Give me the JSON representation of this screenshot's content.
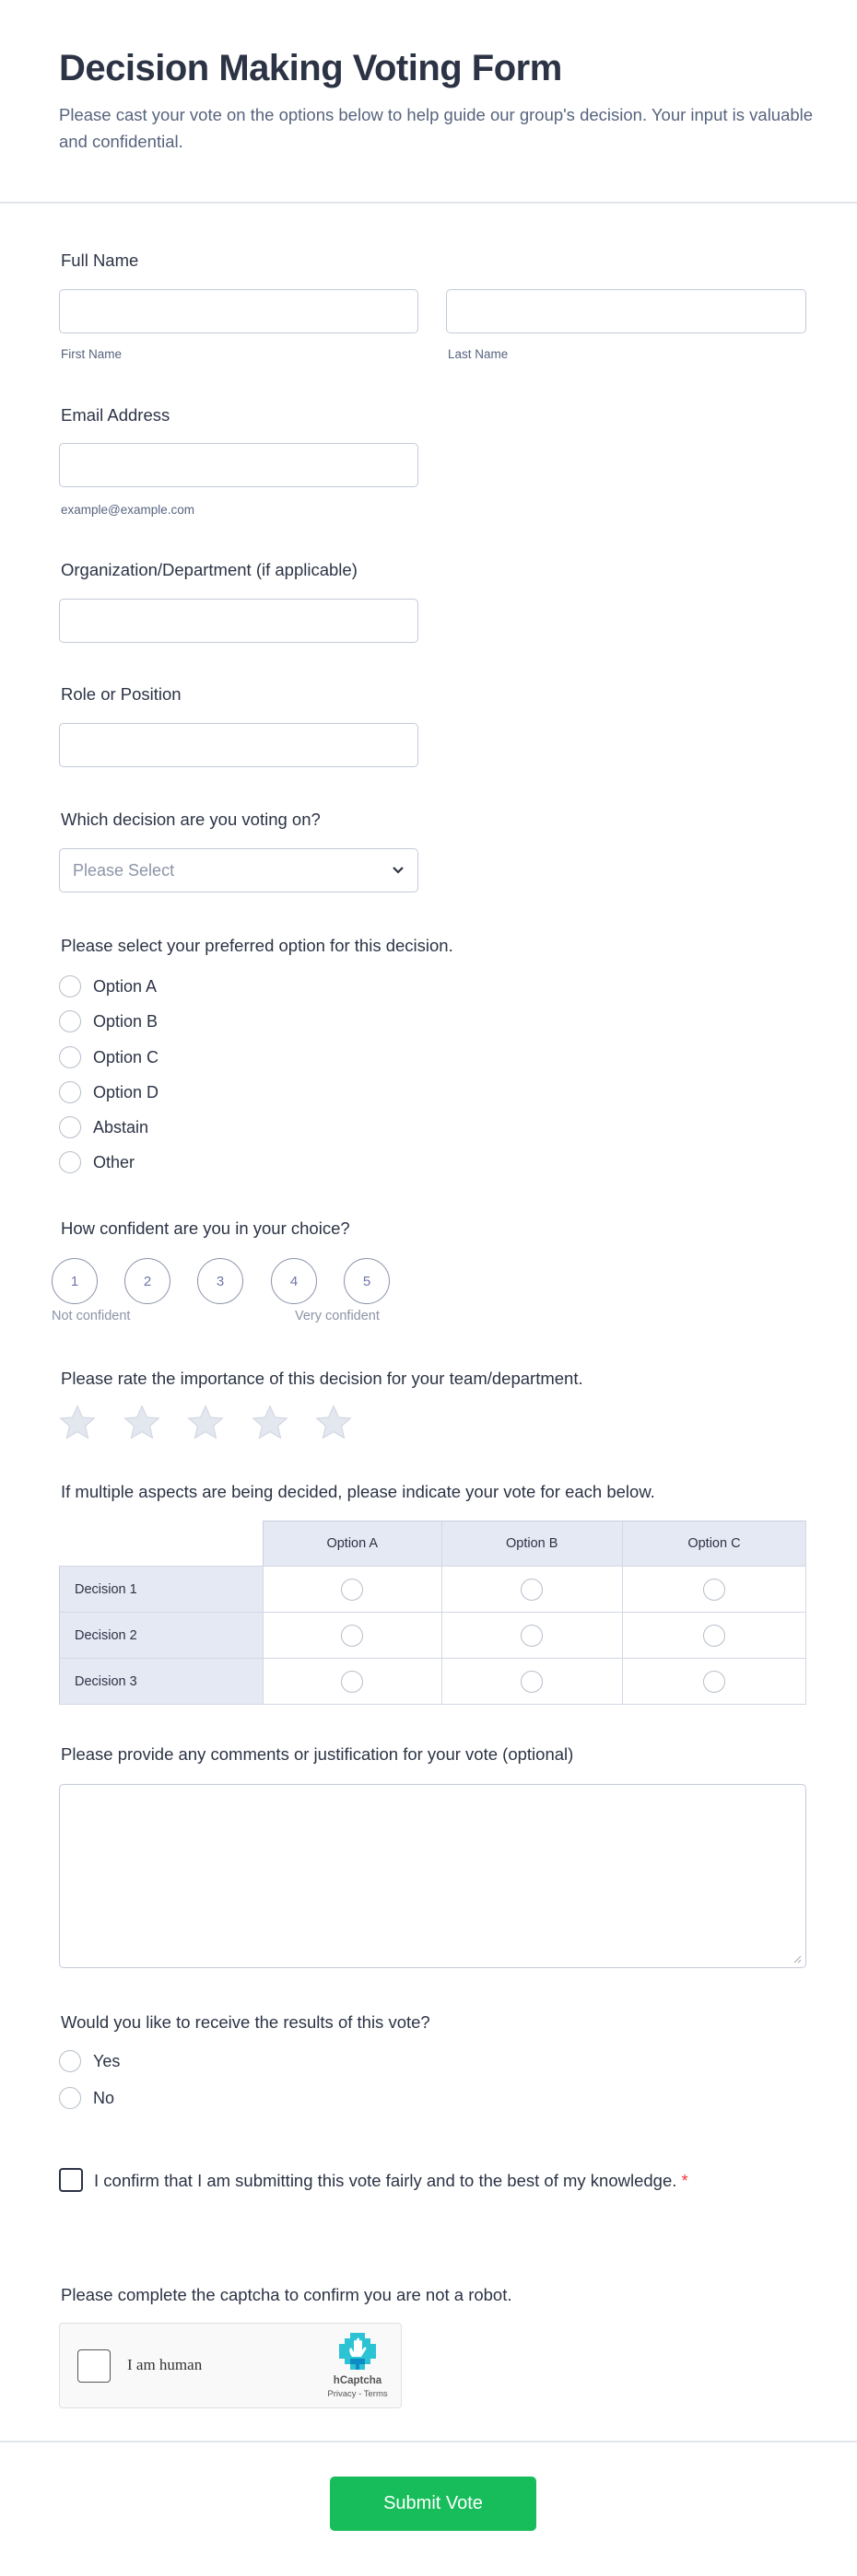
{
  "header": {
    "title": "Decision Making Voting Form",
    "subtitle": "Please cast your vote on the options below to help guide our group's decision. Your input is valuable and confidential."
  },
  "full_name": {
    "label": "Full Name",
    "first": "First Name",
    "last": "Last Name"
  },
  "email": {
    "label": "Email Address",
    "sublabel": "example@example.com"
  },
  "org": {
    "label": "Organization/Department (if applicable)"
  },
  "role": {
    "label": "Role or Position"
  },
  "decision": {
    "label": "Which decision are you voting on?",
    "placeholder": "Please Select"
  },
  "preferred": {
    "label": "Please select your preferred option for this decision.",
    "options": [
      "Option A",
      "Option B",
      "Option C",
      "Option D",
      "Abstain",
      "Other"
    ]
  },
  "confidence": {
    "label": "How confident are you in your choice?",
    "scale": [
      "1",
      "2",
      "3",
      "4",
      "5"
    ],
    "low": "Not confident",
    "high": "Very confident"
  },
  "importance": {
    "label": "Please rate the importance of this decision for your team/department.",
    "stars": 5,
    "rating": 0
  },
  "matrix": {
    "label": "If multiple aspects are being decided, please indicate your vote for each below.",
    "columns": [
      "Option A",
      "Option B",
      "Option C"
    ],
    "rows": [
      "Decision 1",
      "Decision 2",
      "Decision 3"
    ]
  },
  "comments": {
    "label": "Please provide any comments or justification for your vote (optional)"
  },
  "results": {
    "label": "Would you like to receive the results of this vote?",
    "options": [
      "Yes",
      "No"
    ]
  },
  "confirm": {
    "text": "I confirm that I am submitting this vote fairly and to the best of my knowledge.",
    "required": "*"
  },
  "captcha": {
    "label": "Please complete the captcha to confirm you are not a robot.",
    "checkbox": "I am human",
    "brand": "hCaptcha",
    "links": "Privacy - Terms"
  },
  "submit": {
    "label": "Submit Vote",
    "color": "#18bd5b"
  }
}
